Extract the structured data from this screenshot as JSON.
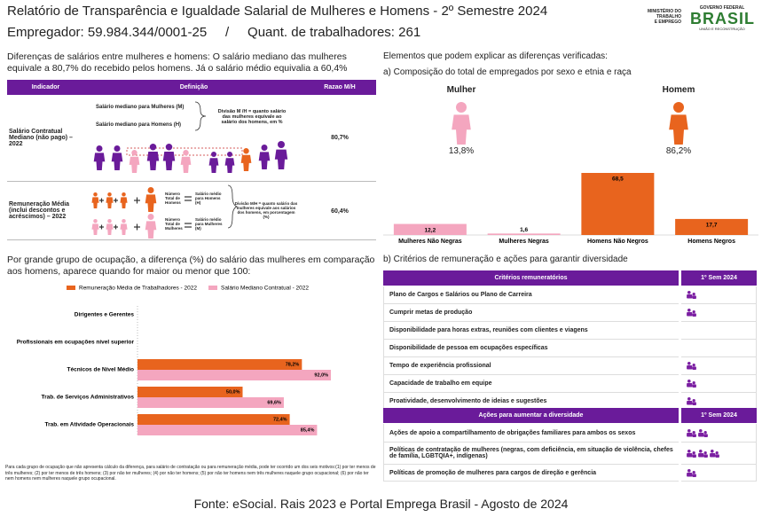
{
  "header": {
    "title": "Relatório de Transparência e Igualdade Salarial de Mulheres e Homens - 2º Semestre 2024",
    "employer": "Empregador: 59.984.344/0001-25",
    "separator": "/",
    "workers": "Quant. de trabalhadores: 261",
    "ministry": [
      "MINISTÉRIO DO",
      "TRABALHO",
      "E EMPREGO"
    ],
    "gov": "GOVERNO FEDERAL",
    "brand": "BRASIL",
    "slogan": "UNIÃO E RECONSTRUÇÃO"
  },
  "intro": "Diferenças de salários entre mulheres e homens: O salário mediano das mulheres equivale a 80,7% do recebido pelos homens. Já o salário médio equivalia a 60,4%",
  "ratio_table": {
    "headers": [
      "Indicador",
      "Definição",
      "Razao M/H"
    ],
    "rows": [
      {
        "indicator": "Salário Contratual Mediano (não pago) – 2022",
        "terms": [
          "Salário mediano para Mulheres (M)",
          "Salário mediano para Homens (H)"
        ],
        "note": "Divisão M /H = quanto salário das mulheres equivale ao salário dos homens, em %",
        "ratio": "80,7%"
      },
      {
        "indicator": "Remuneração Média (inclui descontos e acréscimos) – 2022",
        "terms": [
          "Número Total de Homens",
          "Salário médio para Homens (H)",
          "Número Total de Mulheres",
          "Salário médio para Mulheres (M)"
        ],
        "note": "Divisão M/H = quanto salário das mulheres equivale aos salários dos homens, em porcentagem (%)",
        "ratio": "60,4%"
      }
    ]
  },
  "occupation": {
    "title": "Por grande grupo de ocupação, a diferença (%) do salário das mulheres em comparação aos homens, aparece quando for maior ou menor que 100:",
    "footnote": "Para cada grupo de ocupação que não apresenta cálculo da diferença, para salário de contratação ou para remuneração média, pode ter ocorrido um dos seis motivos:(1) por ter menos de três mulheres; (2) por ter menos de três homens; (3) por não ter mulheres; (4) por não ter homens; (5) por não ter homens nem três mulheres naquele grupo ocupacional; (6) por não ter nem homens nem mulheres naquele grupo ocupacional."
  },
  "explain": {
    "title": "Elementos que podem explicar as diferenças verificadas:",
    "subtitle_a": "a) Composição do total de empregados por sexo e etnia e raça",
    "subtitle_b": "b) Critérios de remuneração e ações para garantir diversidade"
  },
  "gender": [
    {
      "label": "Mulher",
      "share": "13,8%",
      "color": "#f4a6bf"
    },
    {
      "label": "Homem",
      "share": "86,2%",
      "color": "#e8641e"
    }
  ],
  "chart_data": [
    {
      "type": "bar",
      "categories": [
        "Mulheres Não Negras",
        "Mulheres Negras",
        "Homens Não Negros",
        "Homens Negros"
      ],
      "values": [
        12.2,
        1.6,
        68.5,
        17.7
      ],
      "value_labels": [
        "12,2",
        "1,6",
        "68,5",
        "17,7"
      ],
      "colors": [
        "#f4a6bf",
        "#f4a6bf",
        "#e8641e",
        "#e8641e"
      ]
    },
    {
      "type": "hbar",
      "categories": [
        "Dirigentes e Gerentes",
        "Profissionais em ocupações nível superior",
        "Técnicos de Nível Médio",
        "Trab. de Serviços Administrativos",
        "Trab. em Atividade Operacionais"
      ],
      "series": [
        {
          "name": "Remuneração Média de Trabalhadores - 2022",
          "color": "#e8641e",
          "values": [
            null,
            null,
            78.2,
            50.0,
            72.4
          ],
          "value_labels": [
            null,
            null,
            "78,2%",
            "50,0%",
            "72,4%"
          ]
        },
        {
          "name": "Salário Mediano Contratual - 2022",
          "color": "#f4a6bf",
          "values": [
            null,
            null,
            92.0,
            69.6,
            85.4
          ],
          "value_labels": [
            null,
            null,
            "92,0%",
            "69,6%",
            "85,4%"
          ]
        }
      ]
    }
  ],
  "criteria_table": {
    "headers": [
      "Critérios remuneratórios",
      "1º Sem 2024"
    ],
    "rows": [
      {
        "label": "Plano de Cargos e Salários ou Plano de Carreira",
        "icons": 1
      },
      {
        "label": "Cumprir metas de produção",
        "icons": 1
      },
      {
        "label": "Disponibilidade para horas extras, reuniões com clientes e viagens",
        "icons": 0
      },
      {
        "label": "Disponibilidade de pessoa em ocupações específicas",
        "icons": 0
      },
      {
        "label": "Tempo de experiência profissional",
        "icons": 1
      },
      {
        "label": "Capacidade de trabalho em equipe",
        "icons": 1
      },
      {
        "label": "Proatividade, desenvolvimento de ideias e sugestões",
        "icons": 1
      }
    ]
  },
  "actions_table": {
    "headers": [
      "Ações para aumentar a diversidade",
      "1º Sem 2024"
    ],
    "rows": [
      {
        "label": "Ações de apoio a compartilhamento de obrigações familiares para ambos os sexos",
        "icons": 2
      },
      {
        "label": "Políticas de contratação de mulheres (negras, com deficiência, em situação de violência, chefes de família, LGBTQIA+, indígenas)",
        "icons": 3
      },
      {
        "label": "Políticas de promoção de mulheres para cargos de direção e gerência",
        "icons": 1
      }
    ]
  },
  "footer": "Fonte: eSocial. Rais 2023 e Portal Emprega Brasil - Agosto de 2024"
}
